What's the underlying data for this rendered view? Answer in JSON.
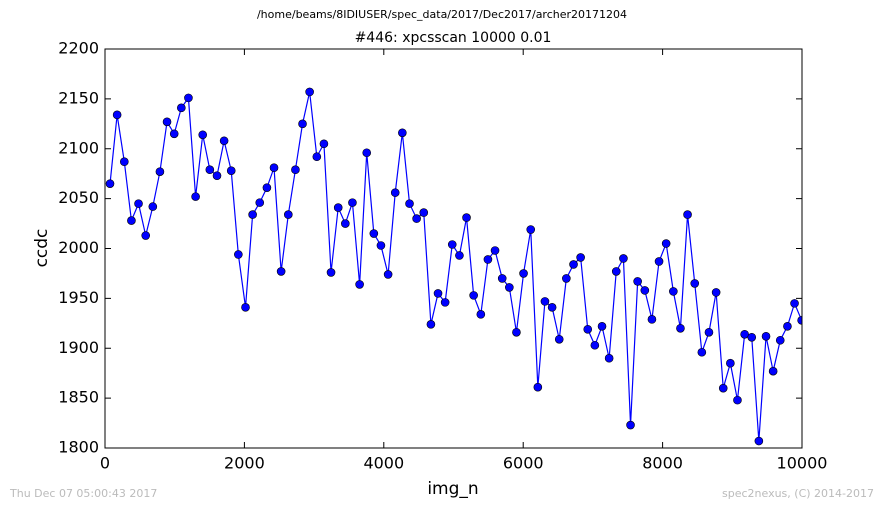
{
  "chart_data": {
    "type": "line",
    "suptitle": "/home/beams/8IDIUSER/spec_data/2017/Dec2017/archer20171204",
    "title": "#446: xpcsscan 10000 0.01",
    "xlabel": "img_n",
    "ylabel": "ccdc",
    "footer_left": "Thu Dec 07 05:00:43 2017",
    "footer_right": "spec2nexus, (C) 2014-2017",
    "color": "#0000ff",
    "marker": "circle",
    "xlim": [
      0,
      10000
    ],
    "xticks": [
      0,
      2000,
      4000,
      6000,
      8000,
      10000
    ],
    "ylim": [
      1800,
      2200
    ],
    "yticks": [
      1800,
      1850,
      1900,
      1950,
      2000,
      2050,
      2100,
      2150,
      2200
    ],
    "grid": false,
    "x": [
      72,
      174,
      277,
      379,
      481,
      584,
      686,
      788,
      890,
      993,
      1095,
      1197,
      1300,
      1402,
      1504,
      1607,
      1709,
      1811,
      1913,
      2016,
      2118,
      2220,
      2323,
      2425,
      2527,
      2630,
      2732,
      2834,
      2936,
      3039,
      3141,
      3243,
      3346,
      3448,
      3550,
      3653,
      3755,
      3857,
      3959,
      4062,
      4164,
      4266,
      4369,
      4471,
      4573,
      4676,
      4778,
      4880,
      4982,
      5085,
      5187,
      5289,
      5392,
      5494,
      5596,
      5699,
      5801,
      5903,
      6005,
      6108,
      6210,
      6312,
      6415,
      6517,
      6619,
      6722,
      6824,
      6926,
      7028,
      7131,
      7233,
      7335,
      7438,
      7540,
      7642,
      7745,
      7847,
      7949,
      8051,
      8154,
      8256,
      8358,
      8461,
      8563,
      8665,
      8768,
      8870,
      8972,
      9074,
      9177,
      9279,
      9381,
      9484,
      9586,
      9688,
      9791,
      9893,
      9995
    ],
    "values": [
      2065,
      2134,
      2087,
      2028,
      2045,
      2013,
      2042,
      2077,
      2127,
      2115,
      2141,
      2151,
      2052,
      2114,
      2079,
      2073,
      2108,
      2078,
      1994,
      1941,
      2034,
      2046,
      2061,
      2081,
      1977,
      2034,
      2079,
      2125,
      2157,
      2092,
      2105,
      1976,
      2041,
      2025,
      2046,
      1964,
      2096,
      2015,
      2003,
      1974,
      2056,
      2116,
      2045,
      2030,
      2036,
      1924,
      1955,
      1946,
      2004,
      1993,
      2031,
      1953,
      1934,
      1989,
      1998,
      1970,
      1961,
      1916,
      1975,
      2019,
      1861,
      1947,
      1941,
      1909,
      1970,
      1984,
      1991,
      1919,
      1903,
      1922,
      1890,
      1977,
      1990,
      1823,
      1967,
      1958,
      1929,
      1987,
      2005,
      1957,
      1920,
      2034,
      1965,
      1896,
      1916,
      1956,
      1860,
      1885,
      1848,
      1914,
      1911,
      1807,
      1912,
      1877,
      1908,
      1922,
      1945,
      1928
    ]
  }
}
